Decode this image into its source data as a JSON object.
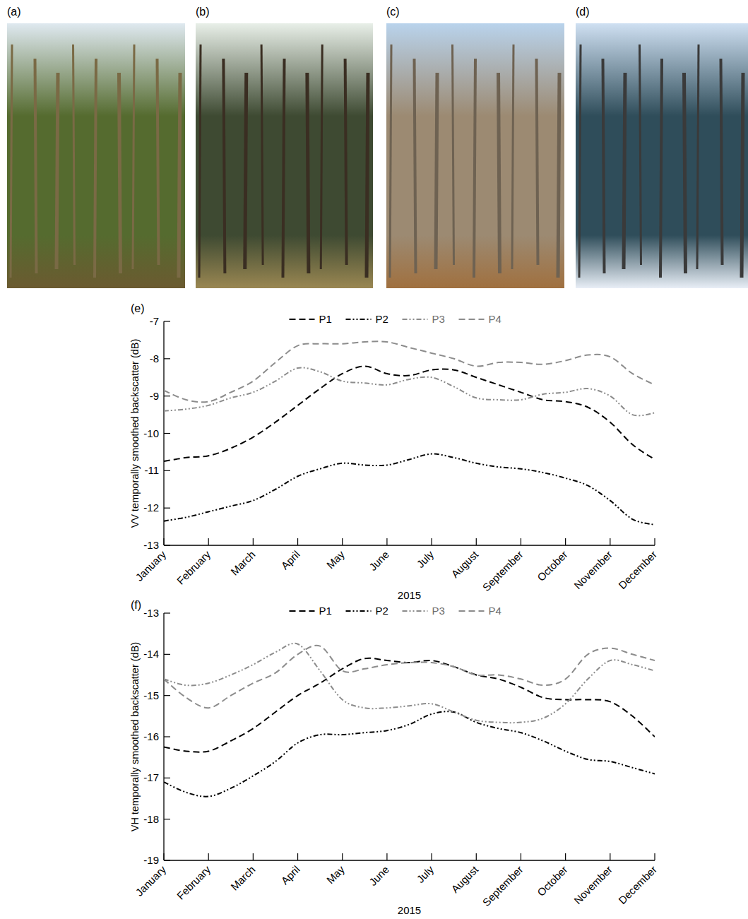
{
  "photos": [
    {
      "label": "(a)"
    },
    {
      "label": "(b)"
    },
    {
      "label": "(c)"
    },
    {
      "label": "(d)"
    }
  ],
  "chart_data": [
    {
      "type": "line",
      "panel_label": "(e)",
      "x_label": "2015",
      "y_label": "VV temporally smoothed backscatter (dB)",
      "x": [
        1,
        1.5,
        2,
        2.5,
        3,
        3.5,
        4,
        4.5,
        5,
        5.5,
        6,
        6.5,
        7,
        7.5,
        8,
        8.5,
        9,
        9.5,
        10,
        10.5,
        11,
        11.5,
        12
      ],
      "xlim": [
        1,
        12
      ],
      "xticks": [
        {
          "value": 1,
          "label": "January"
        },
        {
          "value": 2,
          "label": "February"
        },
        {
          "value": 3,
          "label": "March"
        },
        {
          "value": 4,
          "label": "April"
        },
        {
          "value": 5,
          "label": "May"
        },
        {
          "value": 6,
          "label": "June"
        },
        {
          "value": 7,
          "label": "July"
        },
        {
          "value": 8,
          "label": "August"
        },
        {
          "value": 9,
          "label": "September"
        },
        {
          "value": 10,
          "label": "October"
        },
        {
          "value": 11,
          "label": "November"
        },
        {
          "value": 12,
          "label": "December"
        }
      ],
      "ylim": [
        -13,
        -7
      ],
      "yticks": [
        -13,
        -12,
        -11,
        -10,
        -9,
        -8,
        -7
      ],
      "legend": "top",
      "grid": false,
      "series": [
        {
          "name": "P1",
          "color": "#000000",
          "line_style": "dashed",
          "values": [
            -10.75,
            -10.65,
            -10.6,
            -10.4,
            -10.1,
            -9.7,
            -9.25,
            -8.8,
            -8.4,
            -8.2,
            -8.4,
            -8.45,
            -8.3,
            -8.3,
            -8.5,
            -8.7,
            -8.9,
            -9.1,
            -9.15,
            -9.3,
            -9.7,
            -10.3,
            -10.7
          ]
        },
        {
          "name": "P2",
          "color": "#000000",
          "line_style": "dash-dot-dot",
          "values": [
            -12.35,
            -12.25,
            -12.1,
            -11.95,
            -11.8,
            -11.5,
            -11.15,
            -10.95,
            -10.8,
            -10.85,
            -10.85,
            -10.7,
            -10.55,
            -10.65,
            -10.8,
            -10.9,
            -10.95,
            -11.05,
            -11.2,
            -11.4,
            -11.8,
            -12.3,
            -12.45
          ]
        },
        {
          "name": "P3",
          "color": "#8c8c8c",
          "line_style": "dash-dot-dot",
          "values": [
            -9.4,
            -9.35,
            -9.25,
            -9.05,
            -8.9,
            -8.6,
            -8.25,
            -8.35,
            -8.6,
            -8.65,
            -8.7,
            -8.55,
            -8.5,
            -8.75,
            -9.05,
            -9.1,
            -9.1,
            -8.95,
            -8.9,
            -8.8,
            -9.0,
            -9.5,
            -9.45
          ]
        },
        {
          "name": "P4",
          "color": "#8c8c8c",
          "line_style": "dashed",
          "values": [
            -8.85,
            -9.1,
            -9.15,
            -8.9,
            -8.6,
            -8.1,
            -7.65,
            -7.6,
            -7.6,
            -7.55,
            -7.55,
            -7.7,
            -7.85,
            -8.0,
            -8.2,
            -8.1,
            -8.1,
            -8.15,
            -8.05,
            -7.9,
            -7.95,
            -8.4,
            -8.7
          ]
        }
      ]
    },
    {
      "type": "line",
      "panel_label": "(f)",
      "x_label": "2015",
      "y_label": "VH temporally smoothed backscatter (dB)",
      "x": [
        1,
        1.5,
        2,
        2.5,
        3,
        3.5,
        4,
        4.5,
        5,
        5.5,
        6,
        6.5,
        7,
        7.5,
        8,
        8.5,
        9,
        9.5,
        10,
        10.5,
        11,
        11.5,
        12
      ],
      "xlim": [
        1,
        12
      ],
      "xticks": [
        {
          "value": 1,
          "label": "January"
        },
        {
          "value": 2,
          "label": "February"
        },
        {
          "value": 3,
          "label": "March"
        },
        {
          "value": 4,
          "label": "April"
        },
        {
          "value": 5,
          "label": "May"
        },
        {
          "value": 6,
          "label": "June"
        },
        {
          "value": 7,
          "label": "July"
        },
        {
          "value": 8,
          "label": "August"
        },
        {
          "value": 9,
          "label": "September"
        },
        {
          "value": 10,
          "label": "October"
        },
        {
          "value": 11,
          "label": "November"
        },
        {
          "value": 12,
          "label": "December"
        }
      ],
      "ylim": [
        -19,
        -13
      ],
      "yticks": [
        -19,
        -18,
        -17,
        -16,
        -15,
        -14,
        -13
      ],
      "legend": "top",
      "grid": false,
      "series": [
        {
          "name": "P1",
          "color": "#000000",
          "line_style": "dashed",
          "values": [
            -16.25,
            -16.35,
            -16.35,
            -16.1,
            -15.8,
            -15.4,
            -15.0,
            -14.7,
            -14.35,
            -14.1,
            -14.15,
            -14.2,
            -14.15,
            -14.3,
            -14.5,
            -14.6,
            -14.8,
            -15.05,
            -15.1,
            -15.1,
            -15.15,
            -15.5,
            -16.0
          ]
        },
        {
          "name": "P2",
          "color": "#000000",
          "line_style": "dash-dot-dot",
          "values": [
            -17.1,
            -17.35,
            -17.45,
            -17.25,
            -16.95,
            -16.6,
            -16.15,
            -15.95,
            -15.95,
            -15.9,
            -15.85,
            -15.7,
            -15.45,
            -15.4,
            -15.65,
            -15.8,
            -15.9,
            -16.1,
            -16.35,
            -16.55,
            -16.6,
            -16.75,
            -16.9
          ]
        },
        {
          "name": "P3",
          "color": "#8c8c8c",
          "line_style": "dash-dot-dot",
          "values": [
            -14.6,
            -14.75,
            -14.7,
            -14.5,
            -14.25,
            -13.95,
            -13.75,
            -14.4,
            -15.1,
            -15.3,
            -15.3,
            -15.25,
            -15.2,
            -15.4,
            -15.6,
            -15.65,
            -15.65,
            -15.55,
            -15.2,
            -14.6,
            -14.15,
            -14.25,
            -14.4
          ]
        },
        {
          "name": "P4",
          "color": "#8c8c8c",
          "line_style": "dashed",
          "values": [
            -14.6,
            -15.05,
            -15.3,
            -15.0,
            -14.7,
            -14.45,
            -14.0,
            -13.8,
            -14.4,
            -14.35,
            -14.25,
            -14.2,
            -14.2,
            -14.3,
            -14.5,
            -14.5,
            -14.6,
            -14.75,
            -14.6,
            -14.0,
            -13.85,
            -14.0,
            -14.15
          ]
        }
      ]
    }
  ]
}
